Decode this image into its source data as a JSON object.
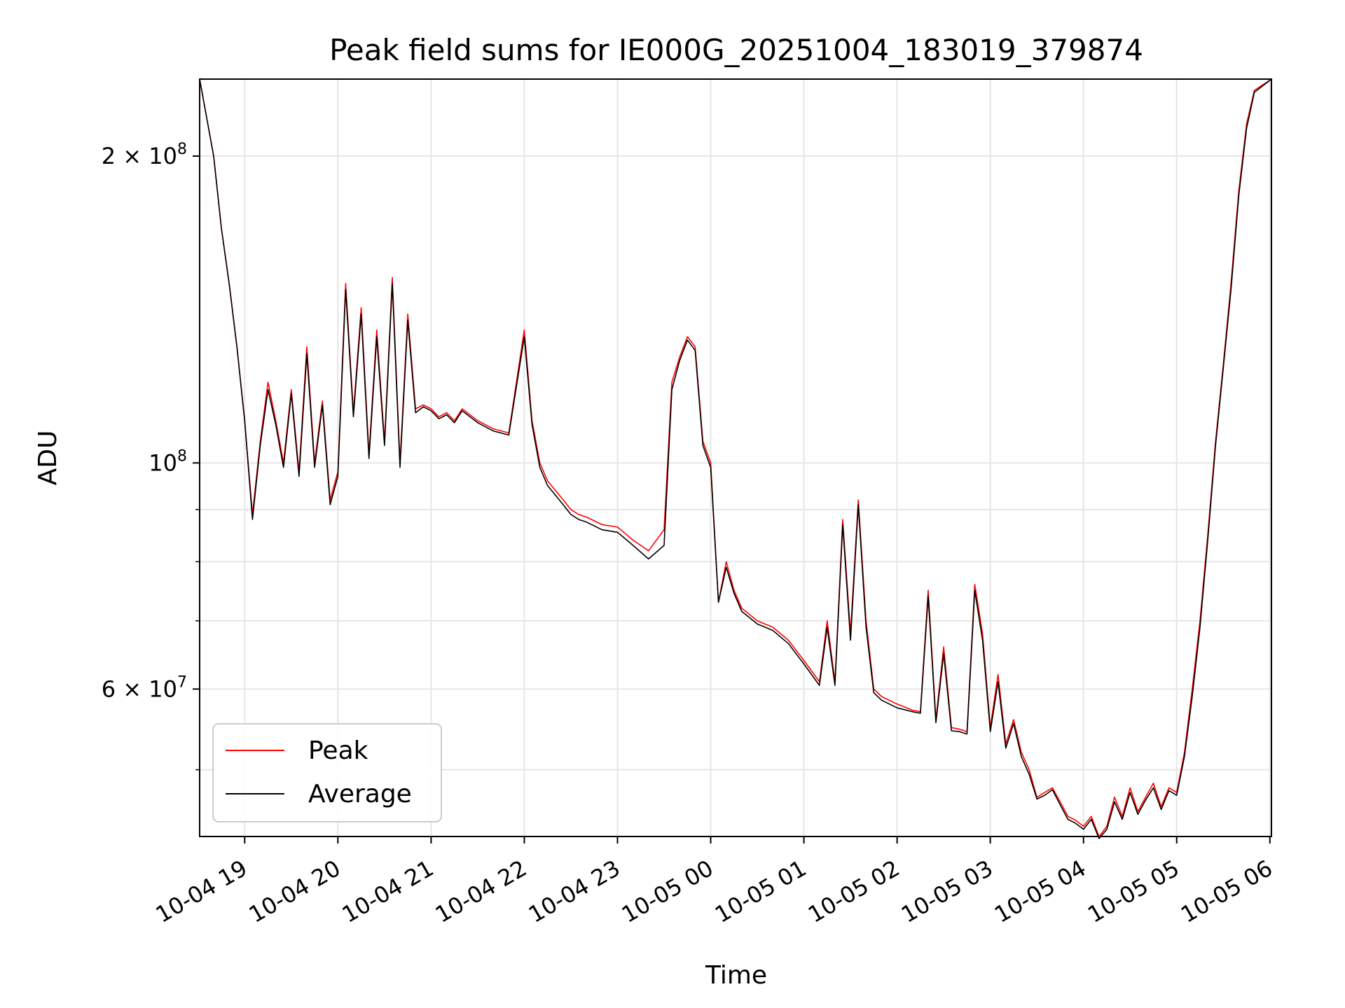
{
  "chart_data": {
    "type": "line",
    "title": "Peak field sums for IE000G_20251004_183019_379874",
    "xlabel": "Time",
    "ylabel": "ADU",
    "y_scale": "log",
    "ylim": [
      43000000,
      238000000
    ],
    "xlim": [
      "10-04 18:31",
      "10-05 06:01"
    ],
    "grid": true,
    "legend_position": "lower-left",
    "x_ticks": [
      "10-04 19",
      "10-04 20",
      "10-04 21",
      "10-04 22",
      "10-04 23",
      "10-05 00",
      "10-05 01",
      "10-05 02",
      "10-05 03",
      "10-05 04",
      "10-05 05",
      "10-05 06"
    ],
    "y_ticks": [
      {
        "value": 200000000,
        "label_base": "2 × 10",
        "label_exp": "8"
      },
      {
        "value": 100000000,
        "label_base": "10",
        "label_exp": "8"
      },
      {
        "value": 60000000,
        "label_base": "6 × 10",
        "label_exp": "7"
      }
    ],
    "y_minor_ticks": [
      50000000,
      70000000,
      80000000,
      90000000
    ],
    "x": [
      "18:31",
      "18:40",
      "18:45",
      "18:50",
      "18:55",
      "19:00",
      "19:05",
      "19:10",
      "19:15",
      "19:20",
      "19:25",
      "19:30",
      "19:35",
      "19:40",
      "19:45",
      "19:50",
      "19:55",
      "20:00",
      "20:05",
      "20:10",
      "20:15",
      "20:20",
      "20:25",
      "20:30",
      "20:35",
      "20:40",
      "20:45",
      "20:50",
      "20:55",
      "21:00",
      "21:05",
      "21:10",
      "21:15",
      "21:20",
      "21:30",
      "21:40",
      "21:50",
      "22:00",
      "22:05",
      "22:10",
      "22:15",
      "22:20",
      "22:25",
      "22:30",
      "22:35",
      "22:40",
      "22:50",
      "23:00",
      "23:10",
      "23:20",
      "23:30",
      "23:35",
      "23:40",
      "23:45",
      "23:50",
      "23:55",
      "00:00",
      "00:05",
      "00:10",
      "00:15",
      "00:20",
      "00:25",
      "00:30",
      "00:40",
      "00:50",
      "01:00",
      "01:10",
      "01:15",
      "01:20",
      "01:25",
      "01:30",
      "01:35",
      "01:40",
      "01:45",
      "01:50",
      "02:00",
      "02:10",
      "02:15",
      "02:20",
      "02:25",
      "02:30",
      "02:35",
      "02:40",
      "02:45",
      "02:50",
      "02:55",
      "03:00",
      "03:05",
      "03:10",
      "03:15",
      "03:20",
      "03:25",
      "03:30",
      "03:35",
      "03:40",
      "03:45",
      "03:50",
      "03:55",
      "04:00",
      "04:05",
      "04:10",
      "04:15",
      "04:20",
      "04:25",
      "04:30",
      "04:35",
      "04:40",
      "04:45",
      "04:50",
      "04:55",
      "05:00",
      "05:05",
      "05:10",
      "05:15",
      "05:20",
      "05:25",
      "05:30",
      "05:35",
      "05:40",
      "05:45",
      "05:50",
      "06:01"
    ],
    "series": [
      {
        "name": "Peak",
        "color": "#ff0000",
        "values": [
          238000000,
          200000000,
          170000000,
          150000000,
          130000000,
          110000000,
          89000000,
          105000000,
          120000000,
          110000000,
          100000000,
          118000000,
          98000000,
          130000000,
          100000000,
          115000000,
          92000000,
          98000000,
          150000000,
          112000000,
          142000000,
          102000000,
          135000000,
          105000000,
          152000000,
          100000000,
          140000000,
          113000000,
          114000000,
          113000000,
          111000000,
          112000000,
          110000000,
          113000000,
          110000000,
          108000000,
          107000000,
          135000000,
          110000000,
          100000000,
          96000000,
          94000000,
          92000000,
          90000000,
          89000000,
          88500000,
          87000000,
          86500000,
          84000000,
          82000000,
          86000000,
          120000000,
          127000000,
          133000000,
          130000000,
          105000000,
          100000000,
          73000000,
          80000000,
          75000000,
          72000000,
          71000000,
          70000000,
          69000000,
          67000000,
          64000000,
          61000000,
          70000000,
          61000000,
          88000000,
          68000000,
          92000000,
          70000000,
          60000000,
          59000000,
          58000000,
          57200000,
          57000000,
          75000000,
          56000000,
          66000000,
          55000000,
          54800000,
          54500000,
          76000000,
          68000000,
          55000000,
          62000000,
          53000000,
          56000000,
          52000000,
          50000000,
          47000000,
          47500000,
          48000000,
          46500000,
          45000000,
          44600000,
          44000000,
          45000000,
          43000000,
          44000000,
          47000000,
          45000000,
          48000000,
          45500000,
          47000000,
          48500000,
          46000000,
          48000000,
          47500000,
          52000000,
          60000000,
          70000000,
          85000000,
          105000000,
          125000000,
          150000000,
          185000000,
          215000000,
          232000000,
          238000000
        ]
      },
      {
        "name": "Average",
        "color": "#000000",
        "values": [
          238000000,
          200000000,
          170000000,
          150000000,
          130000000,
          110000000,
          88000000,
          104000000,
          118000000,
          109000000,
          99000000,
          117000000,
          97000000,
          128000000,
          99000000,
          114000000,
          91000000,
          97000000,
          148000000,
          111000000,
          140000000,
          101000000,
          133000000,
          104000000,
          150000000,
          99000000,
          138000000,
          112000000,
          113500000,
          112500000,
          110500000,
          111500000,
          109500000,
          112500000,
          109500000,
          107500000,
          106500000,
          133000000,
          109000000,
          99000000,
          95000000,
          93000000,
          91000000,
          89000000,
          88000000,
          87500000,
          86000000,
          85500000,
          83000000,
          80500000,
          83000000,
          118000000,
          126000000,
          132000000,
          129000000,
          104000000,
          99000000,
          73000000,
          79000000,
          74500000,
          71500000,
          70500000,
          69500000,
          68500000,
          66500000,
          63500000,
          60500000,
          69000000,
          60500000,
          87000000,
          67000000,
          91000000,
          69000000,
          59500000,
          58500000,
          57500000,
          57000000,
          56800000,
          74000000,
          55600000,
          65000000,
          54600000,
          54500000,
          54200000,
          75000000,
          67000000,
          54500000,
          61000000,
          52500000,
          55500000,
          51500000,
          49500000,
          46800000,
          47200000,
          47800000,
          46200000,
          44700000,
          44300000,
          43700000,
          44700000,
          42800000,
          43700000,
          46500000,
          44700000,
          47500000,
          45200000,
          46700000,
          48000000,
          45700000,
          47700000,
          47200000,
          51500000,
          59000000,
          69000000,
          84000000,
          104000000,
          124000000,
          148000000,
          183000000,
          213000000,
          231000000,
          238000000
        ]
      }
    ]
  }
}
